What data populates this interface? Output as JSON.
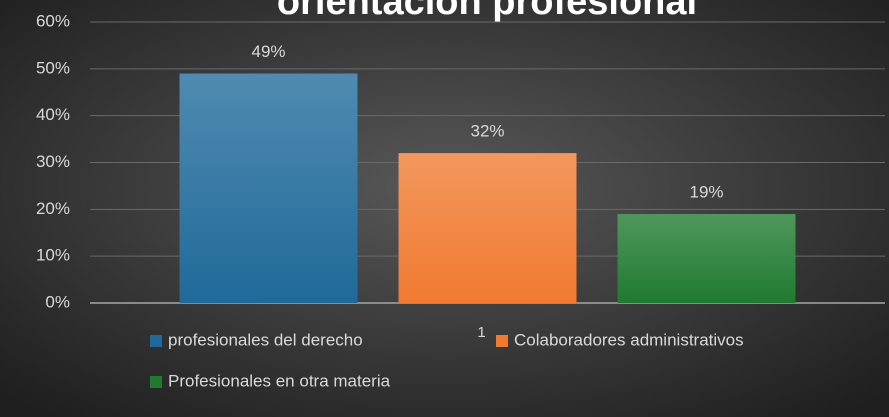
{
  "chart_data": {
    "type": "bar",
    "title": "orientación profesional",
    "categories": [
      "1"
    ],
    "series": [
      {
        "name": "profesionales del derecho",
        "color": "#1f6a9a",
        "values": [
          49
        ],
        "value_labels": [
          "49%"
        ]
      },
      {
        "name": "Colaboradores administrativos",
        "color": "#f07a30",
        "values": [
          32
        ],
        "value_labels": [
          "32%"
        ]
      },
      {
        "name": "Profesionales en otra materia",
        "color": "#1f7a30",
        "values": [
          19
        ],
        "value_labels": [
          "19%"
        ]
      }
    ],
    "ylim": [
      0,
      60
    ],
    "yticks": [
      {
        "value": 0,
        "label": "0%"
      },
      {
        "value": 10,
        "label": "10%"
      },
      {
        "value": 20,
        "label": "20%"
      },
      {
        "value": 30,
        "label": "30%"
      },
      {
        "value": 40,
        "label": "40%"
      },
      {
        "value": 50,
        "label": "50%"
      },
      {
        "value": 60,
        "label": "60%"
      }
    ],
    "grid": true,
    "legend": "bottom"
  }
}
